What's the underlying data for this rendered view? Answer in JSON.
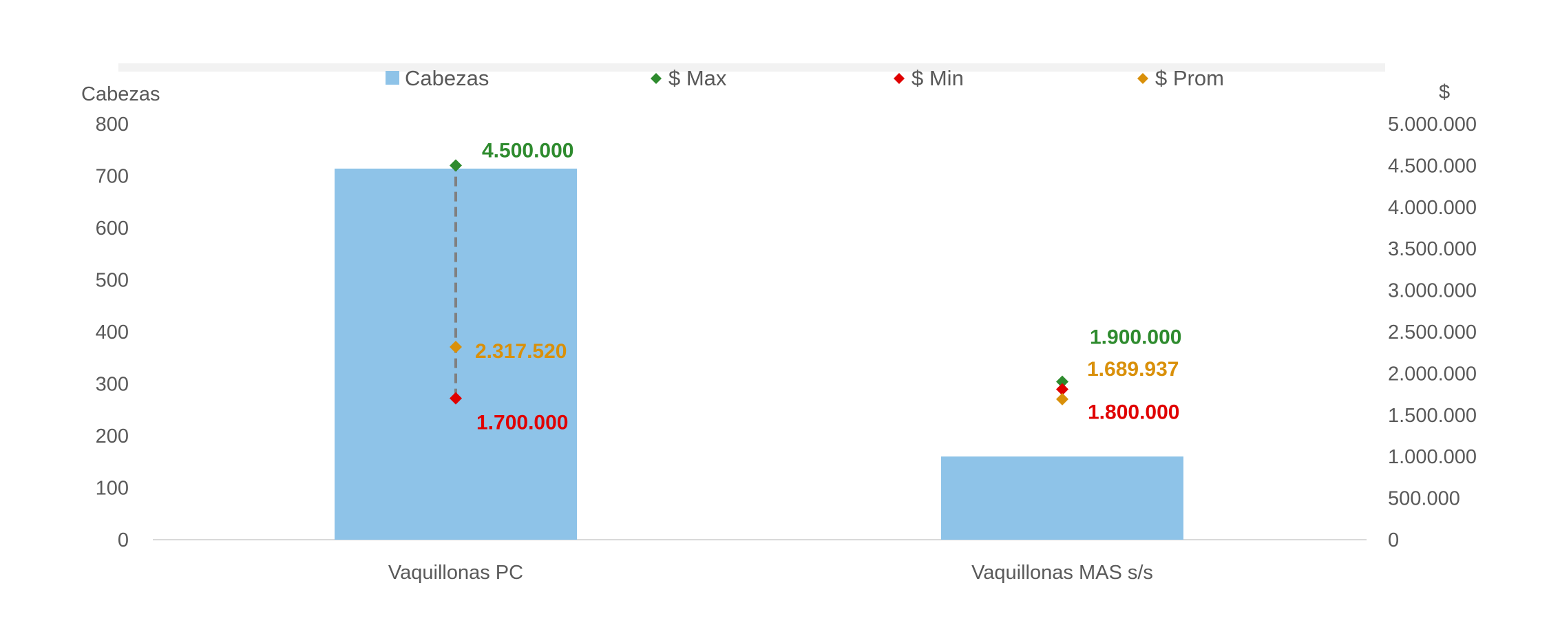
{
  "chart_data": {
    "type": "bar",
    "categories": [
      "Vaquillonas PC",
      "Vaquillonas MAS s/s"
    ],
    "series": [
      {
        "name": "Cabezas",
        "type": "bar",
        "axis": "left",
        "color": "#8EC3E8",
        "values": [
          714,
          160
        ]
      },
      {
        "name": "$ Max",
        "type": "scatter",
        "axis": "right",
        "color": "#2E8B2E",
        "values": [
          4500000,
          1900000
        ],
        "labels": [
          "4.500.000",
          "1.900.000"
        ]
      },
      {
        "name": "$ Min",
        "type": "scatter",
        "axis": "right",
        "color": "#E00000",
        "values": [
          1700000,
          1800000
        ],
        "labels": [
          "1.700.000",
          "1.800.000"
        ]
      },
      {
        "name": "$ Prom",
        "type": "scatter",
        "axis": "right",
        "color": "#D9900A",
        "values": [
          2317520,
          1689937
        ],
        "labels": [
          "2.317.520",
          "1.689.937"
        ]
      }
    ],
    "ylabel": "Cabezas",
    "y2label": "$",
    "ylim": [
      0,
      800
    ],
    "y2lim": [
      0,
      5000000
    ],
    "yticks": [
      "0",
      "100",
      "200",
      "300",
      "400",
      "500",
      "600",
      "700",
      "800"
    ],
    "y2ticks": [
      "0",
      "500.000",
      "1.000.000",
      "1.500.000",
      "2.000.000",
      "2.500.000",
      "3.000.000",
      "3.500.000",
      "4.000.000",
      "4.500.000",
      "5.000.000"
    ],
    "legend_position": "top",
    "range_line": {
      "category": "Vaquillonas PC",
      "from": "$ Min",
      "to": "$ Max",
      "style": "dashed",
      "color": "#808080"
    },
    "grid": false
  }
}
